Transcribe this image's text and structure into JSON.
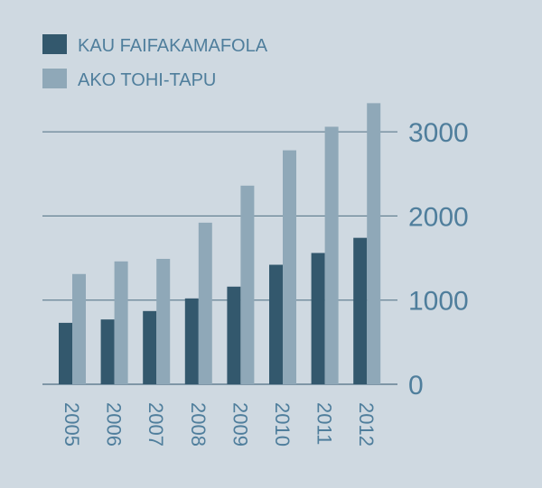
{
  "colors": {
    "background": "#cfd9e1",
    "series_dark": "#33586d",
    "series_light": "#8fa8b8",
    "gridline": "#4f6f82",
    "text": "#4f7e9c"
  },
  "chart_data": {
    "type": "bar",
    "categories": [
      "2005",
      "2006",
      "2007",
      "2008",
      "2009",
      "2010",
      "2011",
      "2012"
    ],
    "series": [
      {
        "name": "KAU FAIFAKAMAFOLA",
        "values": [
          730,
          770,
          870,
          1020,
          1160,
          1420,
          1560,
          1740
        ]
      },
      {
        "name": "AKO TOHI-TAPU",
        "values": [
          1310,
          1460,
          1490,
          1920,
          2360,
          2780,
          3060,
          3340
        ]
      }
    ],
    "y_ticks": [
      "0",
      "1000",
      "2000",
      "3000"
    ],
    "ylim": [
      0,
      3400
    ],
    "grid": true,
    "legend_position": "top-left",
    "title": "",
    "xlabel": "",
    "ylabel": ""
  }
}
